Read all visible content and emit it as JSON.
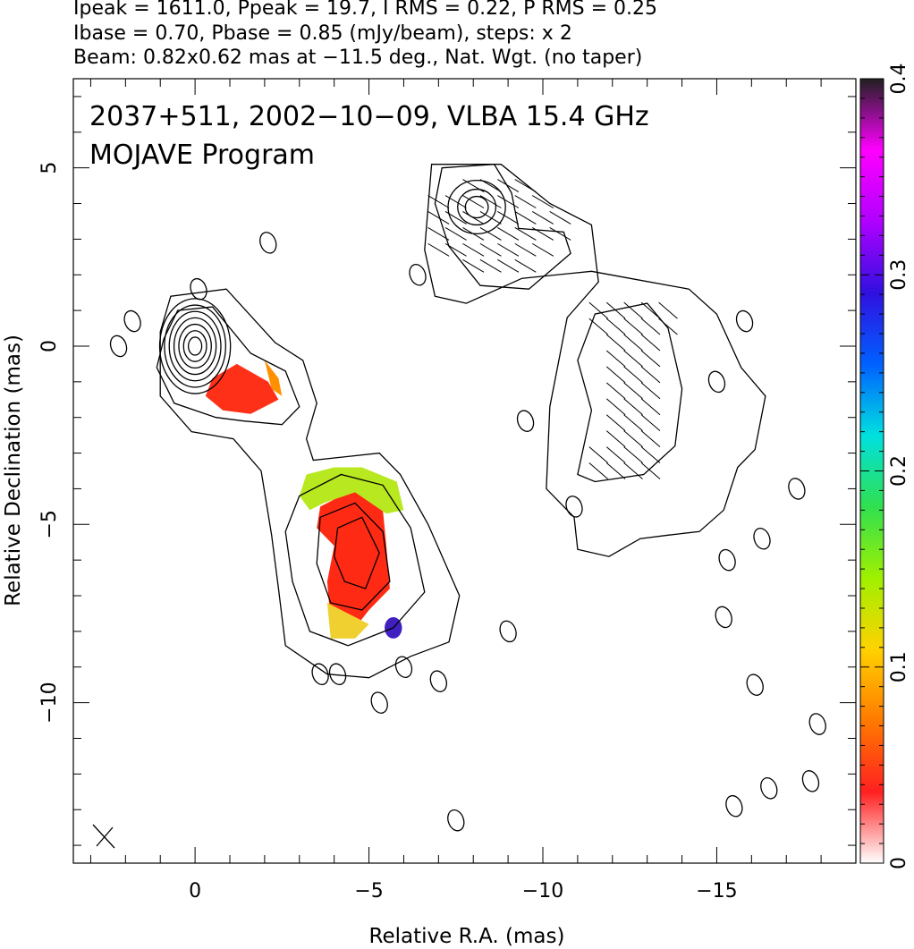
{
  "header": {
    "line1": "Ipeak = 1611.0, Ppeak = 19.7, I RMS = 0.22, P RMS = 0.25",
    "line2": "Ibase = 0.70, Pbase = 0.85 (mJy/beam), steps: x 2",
    "line3": "Beam: 0.82x0.62 mas at −11.5 deg., Nat. Wgt. (no taper)"
  },
  "chart_data": {
    "type": "heatmap",
    "annotation_line1": "2037+511, 2002−10−09, VLBA 15.4 GHz",
    "annotation_line2": "MOJAVE Program",
    "xlabel": "Relative R.A. (mas)",
    "ylabel": "Relative Declination (mas)",
    "xlim": [
      3.5,
      -19
    ],
    "ylim": [
      -14.5,
      7.5
    ],
    "x_ticks": [
      0,
      -5,
      -10,
      -15
    ],
    "x_tick_labels": [
      "0",
      "−5",
      "−10",
      "−15"
    ],
    "y_ticks": [
      5,
      0,
      -5,
      -10
    ],
    "y_tick_labels": [
      "5",
      "0",
      "−5",
      "−10"
    ],
    "colorbar": {
      "range": [
        0,
        0.4
      ],
      "ticks": [
        0,
        0.1,
        0.2,
        0.3,
        0.4
      ],
      "tick_labels": [
        "0",
        "0.1",
        "0.2",
        "0.3",
        "0.4"
      ],
      "colors": [
        "#ffffff",
        "#ff2020",
        "#ff7a00",
        "#ffd200",
        "#a0f000",
        "#30e050",
        "#00e0e0",
        "#0060ff",
        "#3010e0",
        "#b000ff",
        "#ff00ff",
        "#202020"
      ]
    },
    "contour_color": "#000000",
    "core": {
      "x": 0.0,
      "y": 0.0,
      "peak_mJy": 1611.0
    },
    "components": [
      {
        "x": -1.5,
        "y": -1.2
      },
      {
        "x": -4.6,
        "y": -5.8
      },
      {
        "x": -8.0,
        "y": 3.9
      },
      {
        "x": -12.3,
        "y": -2.0
      }
    ]
  }
}
